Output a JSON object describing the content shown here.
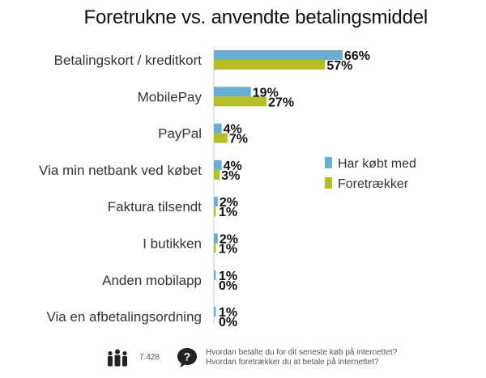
{
  "title": "Foretrukne vs. anvendte betalingsmiddel",
  "chart_data": {
    "type": "bar",
    "orientation": "horizontal",
    "title": "Foretrukne vs. anvendte betalingsmiddel",
    "categories": [
      "Betalingskort / kreditkort",
      "MobilePay",
      "PayPal",
      "Via min netbank ved købet",
      "Faktura tilsendt",
      "I butikken",
      "Anden mobilapp",
      "Via en afbetalingsordning"
    ],
    "series": [
      {
        "name": "Har købt med",
        "values": [
          66,
          19,
          4,
          4,
          2,
          2,
          1,
          1
        ],
        "labels": [
          "66%",
          "19%",
          "4%",
          "4%",
          "2%",
          "2%",
          "1%",
          "1%"
        ],
        "color": "#6aaed3"
      },
      {
        "name": "Foretrækker",
        "values": [
          57,
          27,
          7,
          3,
          1,
          1,
          0,
          0
        ],
        "labels": [
          "57%",
          "27%",
          "7%",
          "3%",
          "1%",
          "1%",
          "0%",
          "0%"
        ],
        "color": "#b5bd27"
      }
    ],
    "xlim": [
      0,
      100
    ],
    "legend": "right",
    "grid": false
  },
  "footer": {
    "count": "7.428",
    "question_lines": [
      "Hvordan betalte du for dit seneste køb på internettet?",
      "Hvordan foretrækker du at betale på internettet?"
    ]
  },
  "icons": [
    "people-icon",
    "question-bubble-icon"
  ]
}
